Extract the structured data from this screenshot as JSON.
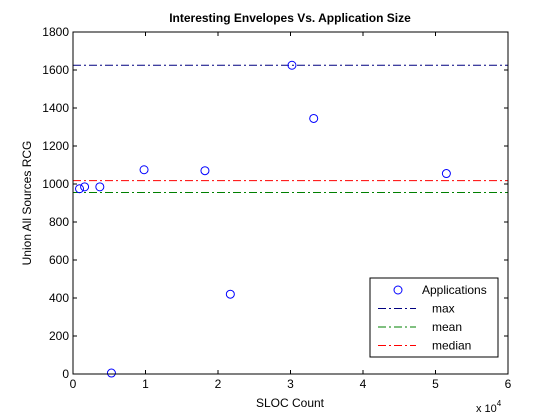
{
  "chart_data": {
    "type": "scatter",
    "title": "Interesting Envelopes Vs. Application Size",
    "xlabel": "SLOC Count",
    "ylabel": "Union All Sources RCG",
    "x_multiplier_label": "x 10",
    "x_multiplier_exponent": "4",
    "xlim": [
      0,
      60000
    ],
    "ylim": [
      0,
      1800
    ],
    "x_ticks": [
      0,
      10000,
      20000,
      30000,
      40000,
      50000,
      60000
    ],
    "x_tick_labels": [
      "0",
      "1",
      "2",
      "3",
      "4",
      "5",
      "6"
    ],
    "y_ticks": [
      0,
      200,
      400,
      600,
      800,
      1000,
      1200,
      1400,
      1600,
      1800
    ],
    "y_tick_labels": [
      "0",
      "200",
      "400",
      "600",
      "800",
      "1000",
      "1200",
      "1400",
      "1600",
      "1800"
    ],
    "grid": false,
    "legend_position": "bottom-right",
    "series": [
      {
        "name": "Applications",
        "kind": "points",
        "color": "#0000ff",
        "x": [
          900,
          1600,
          3700,
          5300,
          9800,
          18200,
          21700,
          30200,
          33200,
          51500
        ],
        "y": [
          975,
          985,
          985,
          5,
          1075,
          1070,
          420,
          1625,
          1345,
          1055
        ]
      },
      {
        "name": "max",
        "kind": "hline",
        "color": "#000080",
        "y": 1625
      },
      {
        "name": "mean",
        "kind": "hline",
        "color": "#008000",
        "y": 955
      },
      {
        "name": "median",
        "kind": "hline",
        "color": "#ff0000",
        "y": 1018
      }
    ]
  }
}
